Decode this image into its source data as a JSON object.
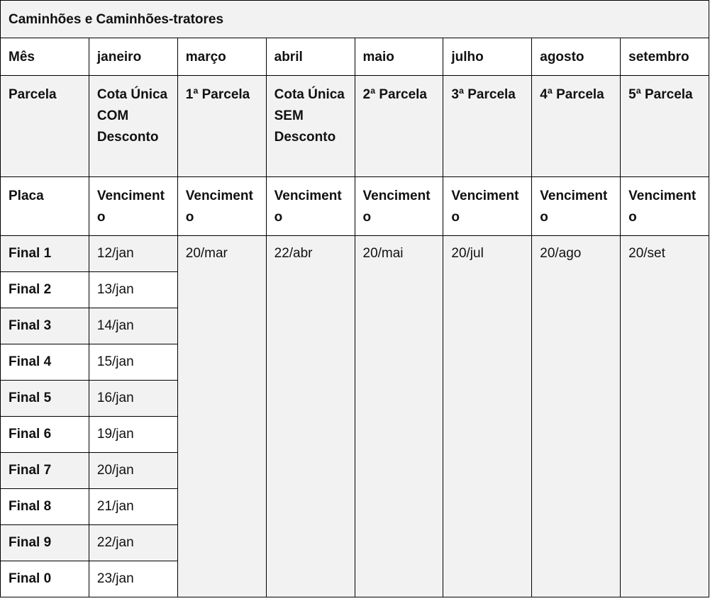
{
  "title": "Caminhões e Caminhões-tratores",
  "header": {
    "label": "Mês",
    "months": [
      "janeiro",
      "março",
      "abril",
      "maio",
      "julho",
      "agosto",
      "setembro"
    ]
  },
  "parcela": {
    "label": "Parcela",
    "values": [
      "Cota Única COM Desconto",
      "1ª Parcela",
      "Cota Única SEM Desconto",
      "2ª Parcela",
      "3ª Parcela",
      "4ª Parcela",
      "5ª Parcela"
    ]
  },
  "placa": {
    "label": "Placa",
    "values": [
      "Vencimento",
      "Vencimento",
      "Vencimento",
      "Vencimento",
      "Vencimento",
      "Vencimento",
      "Vencimento"
    ]
  },
  "finals": [
    {
      "placa": "Final 1",
      "janeiro": "12/jan"
    },
    {
      "placa": "Final 2",
      "janeiro": "13/jan"
    },
    {
      "placa": "Final 3",
      "janeiro": "14/jan"
    },
    {
      "placa": "Final 4",
      "janeiro": "15/jan"
    },
    {
      "placa": "Final 5",
      "janeiro": "16/jan"
    },
    {
      "placa": "Final 6",
      "janeiro": "19/jan"
    },
    {
      "placa": "Final 7",
      "janeiro": "20/jan"
    },
    {
      "placa": "Final 8",
      "janeiro": "21/jan"
    },
    {
      "placa": "Final 9",
      "janeiro": "22/jan"
    },
    {
      "placa": "Final 0",
      "janeiro": "23/jan"
    }
  ],
  "shared_dates": [
    "20/mar",
    "22/abr",
    "20/mai",
    "20/jul",
    "20/ago",
    "20/set"
  ],
  "colors": {
    "shaded": "#f2f2f2",
    "border": "#000000"
  }
}
